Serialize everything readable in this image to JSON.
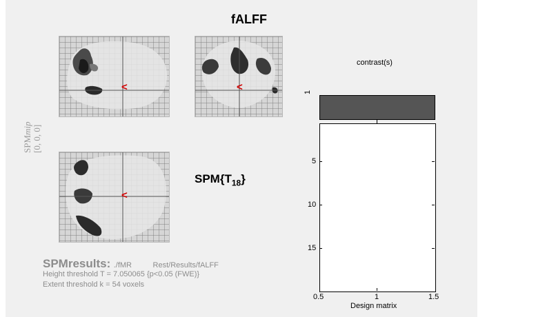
{
  "figure": {
    "title": "fALFF",
    "stat_label": "SPM{T",
    "stat_df": "18",
    "stat_close": "}",
    "side_label_main": "SPM",
    "side_label_italic": "mip",
    "side_label_coords": "[0, 0, 0]",
    "cursor_glyph": "<"
  },
  "results": {
    "heading": "SPMresults:",
    "path": "./fMR          Rest/Results/fALFF",
    "height_threshold": "Height threshold T = 7.050065  {p<0.05 (FWE)}",
    "extent_threshold": "Extent threshold k = 54 voxels"
  },
  "contrast": {
    "title": "contrast(s)",
    "row_label": "1",
    "bar_color": "#555555"
  },
  "design_matrix": {
    "xlabel": "Design matrix",
    "x_ticks": [
      "0.5",
      "1",
      "1.5"
    ],
    "y_ticks": [
      "5",
      "10",
      "15"
    ]
  }
}
